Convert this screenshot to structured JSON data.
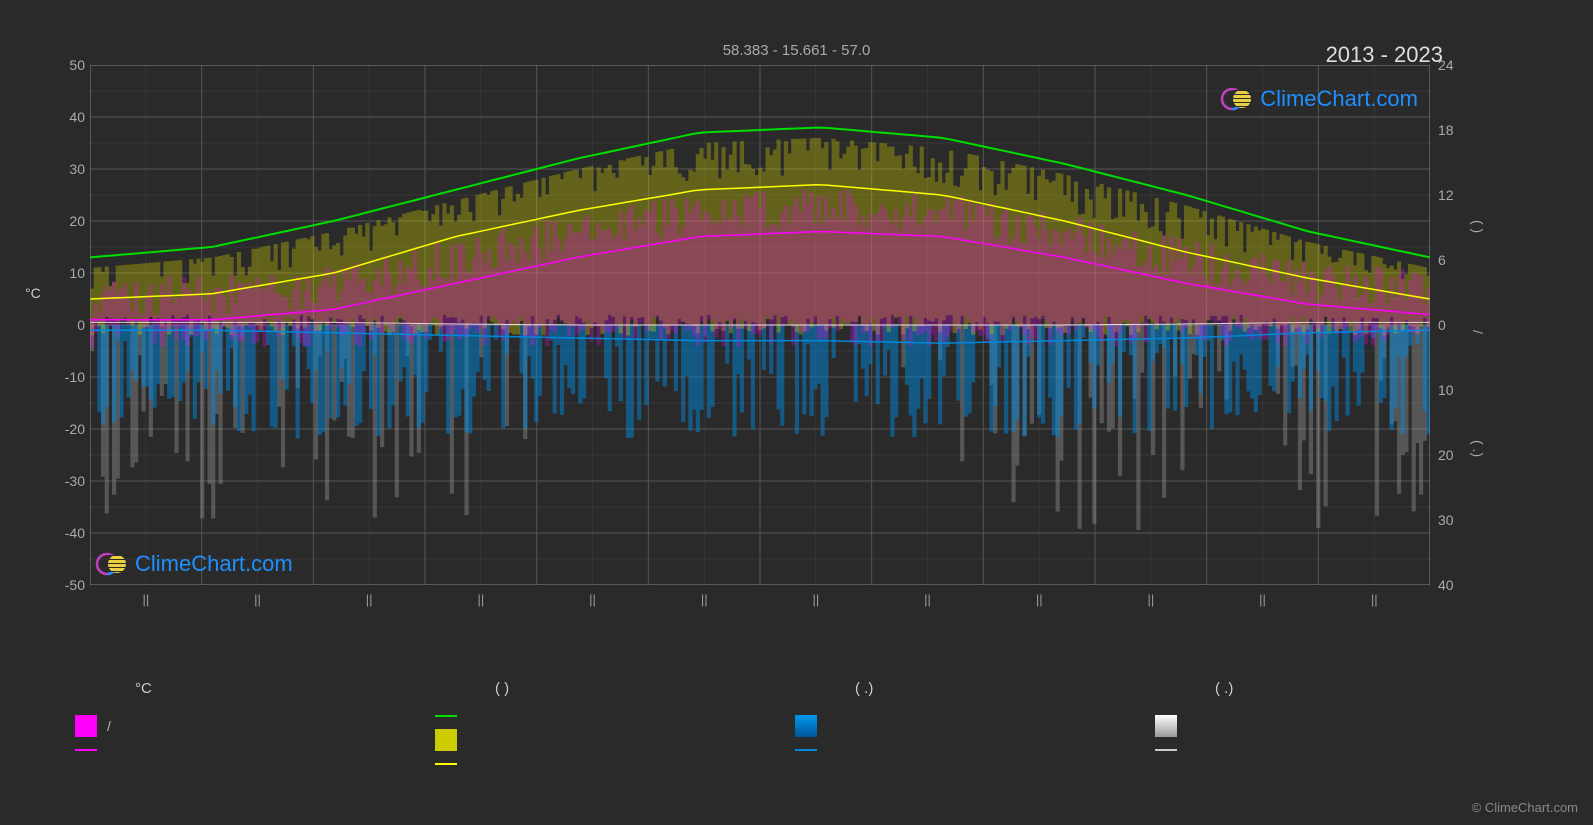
{
  "header": {
    "coords": "58.383 -        15.661 -        57.0",
    "year_range": "2013 - 2023"
  },
  "brand": {
    "name": "ClimeChart.com",
    "color": "#1e90ff",
    "logo_ring_color": "#c040c0",
    "logo_sun_color": "#e8d040"
  },
  "copyright": "© ClimeChart.com",
  "chart": {
    "background": "#2a2a2a",
    "grid_color": "#555555",
    "grid_minor_color": "#404040",
    "axis_text_color": "#aaaaaa",
    "left_axis": {
      "label": "°C",
      "min": -50,
      "max": 50,
      "step": 10,
      "ticks": [
        50,
        40,
        30,
        20,
        10,
        0,
        -10,
        -20,
        -30,
        -40,
        -50
      ]
    },
    "right_axis_top": {
      "ticks": [
        24,
        18,
        12,
        6,
        0
      ]
    },
    "right_axis_bottom": {
      "ticks": [
        10,
        20,
        30,
        40
      ]
    },
    "months": [
      "||",
      "||",
      "||",
      "||",
      "||",
      "||",
      "||",
      "||",
      "||",
      "||",
      "||",
      "||"
    ],
    "lines": {
      "green": {
        "color": "#00dd00",
        "width": 2,
        "values": [
          13,
          15,
          20,
          26,
          32,
          37,
          38,
          36,
          31,
          25,
          18,
          13
        ]
      },
      "yellow": {
        "color": "#ffff00",
        "width": 1.5,
        "values": [
          5,
          6,
          10,
          17,
          22,
          26,
          27,
          25,
          20,
          14,
          9,
          5
        ]
      },
      "pink": {
        "color": "#ff00ff",
        "width": 1.5,
        "values": [
          1,
          1,
          3,
          8,
          13,
          17,
          18,
          17,
          13,
          8,
          4,
          2
        ]
      },
      "blue": {
        "color": "#0088dd",
        "width": 1.5,
        "values": [
          -1,
          -1,
          -1.5,
          -2,
          -2.5,
          -3,
          -3,
          -3.5,
          -3,
          -2.5,
          -1.5,
          -1
        ]
      },
      "white": {
        "color": "#dddddd",
        "width": 1,
        "values": [
          0.5,
          0.5,
          0.5,
          0.2,
          0,
          0,
          0,
          0,
          0,
          0.2,
          0.5,
          0.5
        ]
      }
    },
    "bars": {
      "yellow_fill": {
        "color": "#cccc00",
        "opacity": 0.35
      },
      "pink_fill": {
        "color": "#ff00ff",
        "opacity": 0.25
      },
      "blue_fill": {
        "color": "#0088dd",
        "opacity": 0.5
      },
      "gray_fill": {
        "color": "#999999",
        "opacity": 0.4
      }
    }
  },
  "legend": {
    "headers": [
      "°C",
      "(          )",
      "(   .)",
      "(   .)"
    ],
    "col1": [
      {
        "type": "box",
        "color": "#ff00ff",
        "label": "/"
      },
      {
        "type": "line",
        "color": "#ff00ff",
        "label": ""
      }
    ],
    "col2": [
      {
        "type": "line",
        "color": "#00dd00",
        "label": ""
      },
      {
        "type": "box",
        "color": "#cccc00",
        "label": ""
      },
      {
        "type": "line",
        "color": "#ffff00",
        "label": ""
      }
    ],
    "col3": [
      {
        "type": "box",
        "color": "#0088dd",
        "label": ""
      },
      {
        "type": "line",
        "color": "#0088dd",
        "label": ""
      }
    ],
    "col4": [
      {
        "type": "box",
        "color": "#dddddd",
        "label": ""
      },
      {
        "type": "line",
        "color": "#cccccc",
        "label": ""
      }
    ]
  }
}
